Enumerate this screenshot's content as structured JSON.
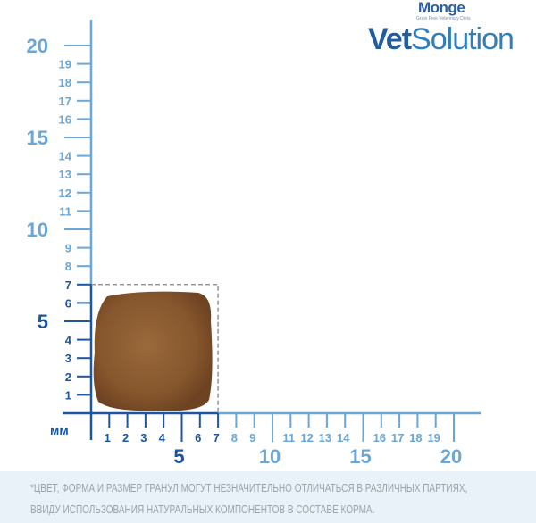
{
  "brand": {
    "name": "Monge",
    "tagline": "Grain Free Veterinary Diets",
    "product_prefix": "Vet",
    "product_suffix": "Solution"
  },
  "ruler": {
    "unit": "мм",
    "max_mm": 20,
    "kibble_size_mm": 7,
    "major_labels": [
      "5",
      "10",
      "15",
      "20"
    ],
    "minor_labels": [
      "1",
      "2",
      "3",
      "4",
      "6",
      "7",
      "8",
      "9",
      "11",
      "12",
      "13",
      "14",
      "16",
      "17",
      "18",
      "19"
    ],
    "colors": {
      "dark": "#1c55a0",
      "light": "#6aa6d6",
      "kibble": "#8a5a30"
    }
  },
  "disclaimer": {
    "line1": "*ЦВЕТ, ФОРМА И РАЗМЕР ГРАНУЛ МОГУТ НЕЗНАЧИТЕЛЬНО ОТЛИЧАТЬСЯ В РАЗЛИЧНЫХ ПАРТИЯХ,",
    "line2": "ВВИДУ ИСПОЛЬЗОВАНИЯ НАТУРАЛЬНЫХ КОМПОНЕНТОВ В СОСТАВЕ КОРМА."
  }
}
